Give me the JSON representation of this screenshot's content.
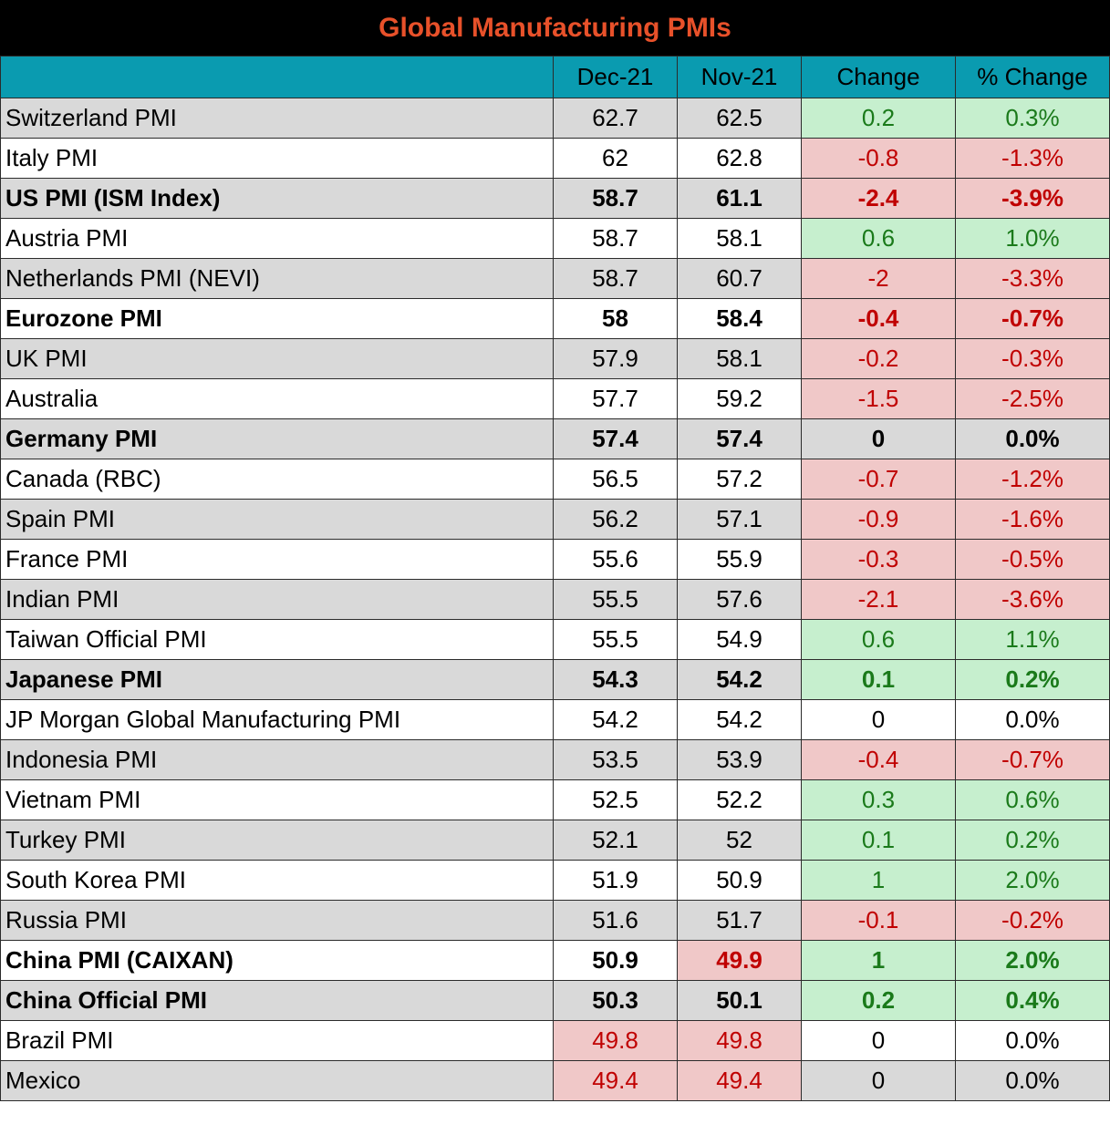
{
  "title": "Global Manufacturing PMIs",
  "headers": [
    "",
    "Dec-21",
    "Nov-21",
    "Change",
    "% Change"
  ],
  "colors": {
    "title_bg": "#000000",
    "title_text": "#e8512a",
    "header_bg": "#0a9bb0",
    "positive_bg": "#c6efce",
    "positive_text": "#1a7a1a",
    "negative_bg": "#f0c8c8",
    "negative_text": "#c00000",
    "gray_row": "#d9d9d9"
  },
  "rows": [
    {
      "name": "Switzerland PMI",
      "dec": "62.7",
      "nov": "62.5",
      "change": "0.2",
      "pct": "0.3%",
      "bold": false,
      "shade": "gray",
      "sign": "pos"
    },
    {
      "name": "Italy PMI",
      "dec": "62",
      "nov": "62.8",
      "change": "-0.8",
      "pct": "-1.3%",
      "bold": false,
      "shade": "white",
      "sign": "neg"
    },
    {
      "name": "US PMI (ISM Index)",
      "dec": "58.7",
      "nov": "61.1",
      "change": "-2.4",
      "pct": "-3.9%",
      "bold": true,
      "shade": "gray",
      "sign": "neg"
    },
    {
      "name": "Austria PMI",
      "dec": "58.7",
      "nov": "58.1",
      "change": "0.6",
      "pct": "1.0%",
      "bold": false,
      "shade": "white",
      "sign": "pos"
    },
    {
      "name": "Netherlands PMI (NEVI)",
      "dec": "58.7",
      "nov": "60.7",
      "change": "-2",
      "pct": "-3.3%",
      "bold": false,
      "shade": "gray",
      "sign": "neg"
    },
    {
      "name": "Eurozone PMI",
      "dec": "58",
      "nov": "58.4",
      "change": "-0.4",
      "pct": "-0.7%",
      "bold": true,
      "shade": "white",
      "sign": "neg"
    },
    {
      "name": "UK PMI",
      "dec": "57.9",
      "nov": "58.1",
      "change": "-0.2",
      "pct": "-0.3%",
      "bold": false,
      "shade": "gray",
      "sign": "neg"
    },
    {
      "name": "Australia",
      "dec": "57.7",
      "nov": "59.2",
      "change": "-1.5",
      "pct": "-2.5%",
      "bold": false,
      "shade": "white",
      "sign": "neg"
    },
    {
      "name": "Germany PMI",
      "dec": "57.4",
      "nov": "57.4",
      "change": "0",
      "pct": "0.0%",
      "bold": true,
      "shade": "gray",
      "sign": "zero"
    },
    {
      "name": "Canada (RBC)",
      "dec": "56.5",
      "nov": "57.2",
      "change": "-0.7",
      "pct": "-1.2%",
      "bold": false,
      "shade": "white",
      "sign": "neg"
    },
    {
      "name": "Spain PMI",
      "dec": "56.2",
      "nov": "57.1",
      "change": "-0.9",
      "pct": "-1.6%",
      "bold": false,
      "shade": "gray",
      "sign": "neg"
    },
    {
      "name": "France PMI",
      "dec": "55.6",
      "nov": "55.9",
      "change": "-0.3",
      "pct": "-0.5%",
      "bold": false,
      "shade": "white",
      "sign": "neg"
    },
    {
      "name": "Indian PMI",
      "dec": "55.5",
      "nov": "57.6",
      "change": "-2.1",
      "pct": "-3.6%",
      "bold": false,
      "shade": "gray",
      "sign": "neg"
    },
    {
      "name": "Taiwan Official PMI",
      "dec": "55.5",
      "nov": "54.9",
      "change": "0.6",
      "pct": "1.1%",
      "bold": false,
      "shade": "white",
      "sign": "pos"
    },
    {
      "name": "Japanese PMI",
      "dec": "54.3",
      "nov": "54.2",
      "change": "0.1",
      "pct": "0.2%",
      "bold": true,
      "shade": "gray",
      "sign": "pos"
    },
    {
      "name": "JP Morgan Global Manufacturing PMI",
      "dec": "54.2",
      "nov": "54.2",
      "change": "0",
      "pct": "0.0%",
      "bold": false,
      "shade": "white",
      "sign": "zero"
    },
    {
      "name": "Indonesia PMI",
      "dec": "53.5",
      "nov": "53.9",
      "change": "-0.4",
      "pct": "-0.7%",
      "bold": false,
      "shade": "gray",
      "sign": "neg"
    },
    {
      "name": "Vietnam PMI",
      "dec": "52.5",
      "nov": "52.2",
      "change": "0.3",
      "pct": "0.6%",
      "bold": false,
      "shade": "white",
      "sign": "pos"
    },
    {
      "name": "Turkey PMI",
      "dec": "52.1",
      "nov": "52",
      "change": "0.1",
      "pct": "0.2%",
      "bold": false,
      "shade": "gray",
      "sign": "pos"
    },
    {
      "name": "South Korea PMI",
      "dec": "51.9",
      "nov": "50.9",
      "change": "1",
      "pct": "2.0%",
      "bold": false,
      "shade": "white",
      "sign": "pos"
    },
    {
      "name": "Russia PMI",
      "dec": "51.6",
      "nov": "51.7",
      "change": "-0.1",
      "pct": "-0.2%",
      "bold": false,
      "shade": "gray",
      "sign": "neg"
    },
    {
      "name": "China PMI (CAIXAN)",
      "dec": "50.9",
      "nov": "49.9",
      "change": "1",
      "pct": "2.0%",
      "bold": true,
      "shade": "white",
      "sign": "pos",
      "nov_below": true
    },
    {
      "name": "China Official PMI",
      "dec": "50.3",
      "nov": "50.1",
      "change": "0.2",
      "pct": "0.4%",
      "bold": true,
      "shade": "gray",
      "sign": "pos"
    },
    {
      "name": "Brazil PMI",
      "dec": "49.8",
      "nov": "49.8",
      "change": "0",
      "pct": "0.0%",
      "bold": false,
      "shade": "white",
      "sign": "zero",
      "dec_below": true,
      "nov_below": true
    },
    {
      "name": "Mexico",
      "dec": "49.4",
      "nov": "49.4",
      "change": "0",
      "pct": "0.0%",
      "bold": false,
      "shade": "gray",
      "sign": "zero",
      "dec_below": true,
      "nov_below": true
    }
  ]
}
